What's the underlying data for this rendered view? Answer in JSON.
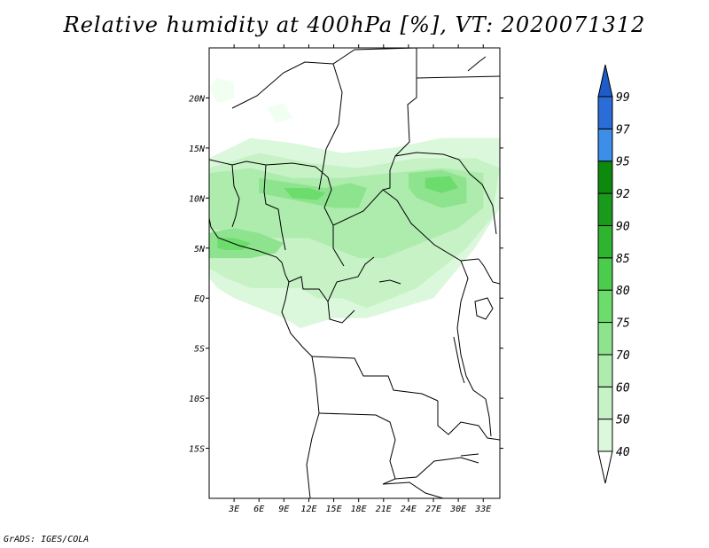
{
  "title": "Relative humidity at 400hPa [%], VT: 2020071312",
  "credit": "GrADS: IGES/COLA",
  "map": {
    "lon_range": [
      0,
      35
    ],
    "lat_range": [
      -20,
      25
    ],
    "lon_ticks": [
      {
        "lon": 3,
        "label": "3E"
      },
      {
        "lon": 6,
        "label": "6E"
      },
      {
        "lon": 9,
        "label": "9E"
      },
      {
        "lon": 12,
        "label": "12E"
      },
      {
        "lon": 15,
        "label": "15E"
      },
      {
        "lon": 18,
        "label": "18E"
      },
      {
        "lon": 21,
        "label": "21E"
      },
      {
        "lon": 24,
        "label": "24E"
      },
      {
        "lon": 27,
        "label": "27E"
      },
      {
        "lon": 30,
        "label": "30E"
      },
      {
        "lon": 33,
        "label": "33E"
      }
    ],
    "lat_ticks": [
      {
        "lat": 20,
        "label": "20N"
      },
      {
        "lat": 15,
        "label": "15N"
      },
      {
        "lat": 10,
        "label": "10N"
      },
      {
        "lat": 5,
        "label": "5N"
      },
      {
        "lat": 0,
        "label": "EQ"
      },
      {
        "lat": -5,
        "label": "5S"
      },
      {
        "lat": -10,
        "label": "10S"
      },
      {
        "lat": -15,
        "label": "15S"
      }
    ]
  },
  "colorbar": {
    "levels": [
      {
        "label": "40",
        "color": "#f0fff0"
      },
      {
        "label": "50",
        "color": "#dcf8dc"
      },
      {
        "label": "60",
        "color": "#c6f2c6"
      },
      {
        "label": "70",
        "color": "#aeecae"
      },
      {
        "label": "75",
        "color": "#8ee48e"
      },
      {
        "label": "80",
        "color": "#6cdc6c"
      },
      {
        "label": "85",
        "color": "#4ccc4c"
      },
      {
        "label": "90",
        "color": "#2eb42e"
      },
      {
        "label": "92",
        "color": "#1a9a1a"
      },
      {
        "label": "95",
        "color": "#0d8a0d"
      },
      {
        "label": "97",
        "color": "#3c8ee8"
      },
      {
        "label": "99",
        "color": "#2a6cd8"
      }
    ],
    "top_arrow_color": "#1e5cc8",
    "bottom_arrow_color": "#ffffff"
  },
  "humidity_areas": [
    {
      "level": 1,
      "points": [
        [
          0,
          14
        ],
        [
          5,
          16
        ],
        [
          10,
          15.5
        ],
        [
          16,
          14.5
        ],
        [
          22,
          15
        ],
        [
          28,
          16
        ],
        [
          35,
          16
        ],
        [
          35,
          9
        ],
        [
          32,
          5
        ],
        [
          30,
          3
        ],
        [
          27,
          0
        ],
        [
          23,
          -1
        ],
        [
          19,
          -2
        ],
        [
          15,
          -2
        ],
        [
          11,
          -3
        ],
        [
          9,
          -2
        ],
        [
          6,
          -1
        ],
        [
          3,
          0
        ],
        [
          1,
          1
        ],
        [
          0,
          2
        ]
      ]
    },
    {
      "level": 2,
      "points": [
        [
          0,
          13
        ],
        [
          6,
          14.5
        ],
        [
          12,
          13.5
        ],
        [
          18,
          13
        ],
        [
          25,
          14
        ],
        [
          32,
          14
        ],
        [
          35,
          13
        ],
        [
          34,
          8
        ],
        [
          31,
          5
        ],
        [
          28,
          3
        ],
        [
          25,
          1
        ],
        [
          22,
          0
        ],
        [
          19,
          -1
        ],
        [
          16,
          0
        ],
        [
          13,
          0
        ],
        [
          11,
          1
        ],
        [
          8,
          1
        ],
        [
          5,
          1
        ],
        [
          2,
          2
        ],
        [
          0,
          3
        ]
      ]
    },
    {
      "level": 3,
      "points": [
        [
          0,
          12.5
        ],
        [
          5,
          13
        ],
        [
          10,
          12
        ],
        [
          16,
          12
        ],
        [
          22,
          12.5
        ],
        [
          28,
          13
        ],
        [
          33,
          12.5
        ],
        [
          33,
          9
        ],
        [
          30,
          7
        ],
        [
          27,
          6
        ],
        [
          24,
          5
        ],
        [
          21,
          4
        ],
        [
          18,
          4
        ],
        [
          15,
          5
        ],
        [
          12,
          6
        ],
        [
          9,
          6
        ],
        [
          6,
          6
        ],
        [
          3,
          6.5
        ],
        [
          0,
          7
        ]
      ]
    },
    {
      "level": 4,
      "points": [
        [
          0,
          6.5
        ],
        [
          3,
          7
        ],
        [
          6,
          6.5
        ],
        [
          9,
          5.5
        ],
        [
          8,
          4.5
        ],
        [
          5,
          4
        ],
        [
          2,
          4
        ],
        [
          0,
          4
        ]
      ]
    },
    {
      "level": 4,
      "points": [
        [
          6,
          12
        ],
        [
          10,
          11.5
        ],
        [
          14,
          11
        ],
        [
          17,
          11.5
        ],
        [
          19,
          11
        ],
        [
          18,
          9
        ],
        [
          15,
          9
        ],
        [
          12,
          9.5
        ],
        [
          9,
          10
        ],
        [
          6,
          10.5
        ]
      ]
    },
    {
      "level": 4,
      "points": [
        [
          24,
          12.5
        ],
        [
          28,
          12.8
        ],
        [
          31,
          12
        ],
        [
          31,
          9.5
        ],
        [
          28,
          9
        ],
        [
          25,
          10
        ],
        [
          24,
          11
        ]
      ]
    },
    {
      "level": 5,
      "points": [
        [
          1,
          6
        ],
        [
          3,
          6
        ],
        [
          5,
          5.5
        ],
        [
          4,
          4.8
        ],
        [
          2,
          4.8
        ],
        [
          1,
          5
        ]
      ]
    },
    {
      "level": 5,
      "points": [
        [
          9,
          11
        ],
        [
          12,
          11
        ],
        [
          14,
          10.5
        ],
        [
          13,
          9.8
        ],
        [
          10,
          10
        ]
      ]
    },
    {
      "level": 5,
      "points": [
        [
          26,
          12
        ],
        [
          29,
          12.2
        ],
        [
          30,
          11
        ],
        [
          28,
          10.5
        ],
        [
          26,
          11
        ]
      ]
    },
    {
      "level": 0,
      "points": [
        [
          0,
          21
        ],
        [
          1,
          22
        ],
        [
          3,
          21.5
        ],
        [
          3,
          20
        ],
        [
          1,
          19.5
        ]
      ]
    },
    {
      "level": 0,
      "points": [
        [
          7,
          19
        ],
        [
          9,
          19.5
        ],
        [
          10,
          18
        ],
        [
          8,
          17.5
        ]
      ]
    }
  ]
}
